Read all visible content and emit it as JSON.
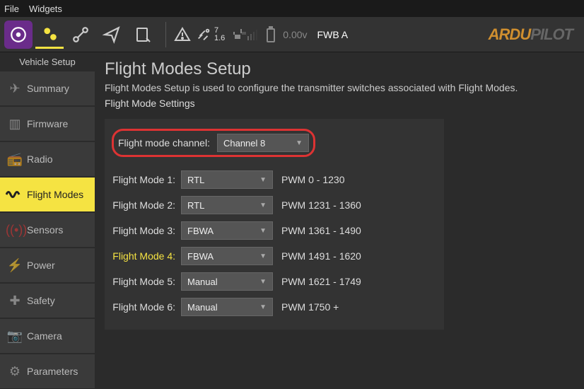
{
  "menubar": {
    "file": "File",
    "widgets": "Widgets"
  },
  "toolbar": {
    "num_top": "7",
    "num_bot": "1.6",
    "voltage": "0.00v",
    "mode": "FWB A",
    "brand_pre": "ARDU",
    "brand_post": "PILOT"
  },
  "sidebar": {
    "title": "Vehicle Setup",
    "items": [
      {
        "label": "Summary"
      },
      {
        "label": "Firmware"
      },
      {
        "label": "Radio"
      },
      {
        "label": "Flight Modes"
      },
      {
        "label": "Sensors"
      },
      {
        "label": "Power"
      },
      {
        "label": "Safety"
      },
      {
        "label": "Camera"
      },
      {
        "label": "Parameters"
      }
    ]
  },
  "page": {
    "title": "Flight Modes Setup",
    "desc": "Flight Modes Setup is used to configure the transmitter switches associated with Flight Modes.",
    "sub": "Flight Mode Settings",
    "channel_label": "Flight mode channel:",
    "channel_value": "Channel 8",
    "rows": [
      {
        "label": "Flight Mode 1:",
        "value": "RTL",
        "pwm": "PWM 0 - 1230",
        "yellow": false
      },
      {
        "label": "Flight Mode 2:",
        "value": "RTL",
        "pwm": "PWM 1231 - 1360",
        "yellow": false
      },
      {
        "label": "Flight Mode 3:",
        "value": "FBWA",
        "pwm": "PWM 1361 - 1490",
        "yellow": false
      },
      {
        "label": "Flight Mode 4:",
        "value": "FBWA",
        "pwm": "PWM 1491 - 1620",
        "yellow": true
      },
      {
        "label": "Flight Mode 5:",
        "value": "Manual",
        "pwm": "PWM 1621 - 1749",
        "yellow": false
      },
      {
        "label": "Flight Mode 6:",
        "value": "Manual",
        "pwm": "PWM 1750 +",
        "yellow": false
      }
    ]
  },
  "colors": {
    "accent": "#f5e342",
    "highlight": "#d33",
    "bg": "#2b2b2b",
    "panel": "#333"
  }
}
